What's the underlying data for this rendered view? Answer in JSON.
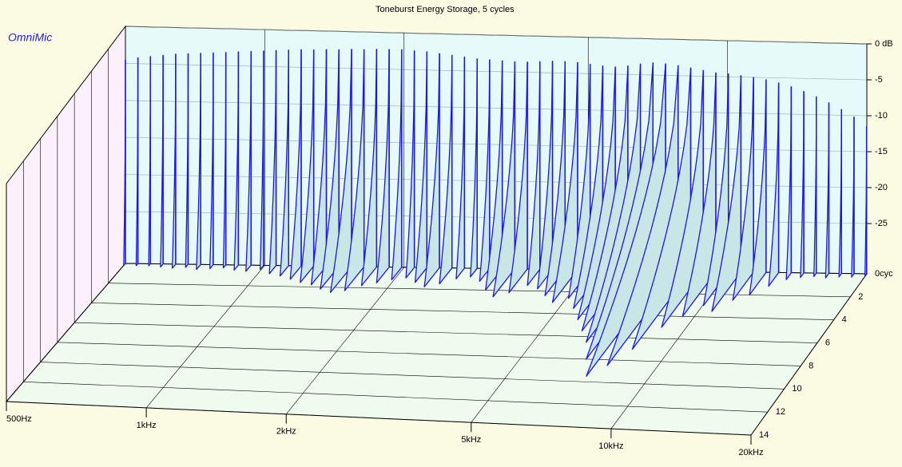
{
  "chart_data": {
    "type": "waterfall",
    "title": "Toneburst Energy Storage, 5 cycles",
    "watermark": "OmniMic",
    "xscale": "log",
    "xlim": [
      500,
      20000
    ],
    "xticks": [
      {
        "value": 500,
        "label": "500Hz"
      },
      {
        "value": 1000,
        "label": "1kHz"
      },
      {
        "value": 2000,
        "label": "2kHz"
      },
      {
        "value": 5000,
        "label": "5kHz"
      },
      {
        "value": 10000,
        "label": "10kHz"
      },
      {
        "value": 20000,
        "label": "20kHz"
      }
    ],
    "ylim": [
      -32,
      0
    ],
    "yticks": [
      {
        "value": 0,
        "label": "0 dB"
      },
      -5,
      -10,
      -15,
      -20,
      -25
    ],
    "zlim": [
      0,
      14
    ],
    "zticks": [
      {
        "value": 0,
        "label": "0cyc"
      },
      2,
      4,
      6,
      8,
      10,
      12,
      14
    ],
    "color": "#1a1ae6",
    "frequencies": [
      500,
      532,
      566,
      603,
      642,
      683,
      727,
      774,
      824,
      877,
      934,
      994,
      1058,
      1126,
      1199,
      1276,
      1359,
      1446,
      1540,
      1639,
      1745,
      1857,
      1977,
      2105,
      2240,
      2385,
      2539,
      2702,
      2877,
      3062,
      3260,
      3470,
      3694,
      3932,
      4186,
      4456,
      4743,
      5049,
      5375,
      5721,
      6090,
      6483,
      6901,
      7347,
      7821,
      8325,
      8862,
      9434,
      10043,
      10691,
      11380,
      12114,
      12896,
      13728,
      14613,
      15556,
      16559,
      17628,
      18765,
      19975
    ],
    "peak_db": [
      -4.5,
      -4.2,
      -4,
      -3.8,
      -3.6,
      -3.5,
      -3.4,
      -3.3,
      -3.2,
      -3.1,
      -3,
      -2.9,
      -2.8,
      -2.7,
      -2.6,
      -2.6,
      -2.5,
      -2.5,
      -2.4,
      -2.4,
      -2.3,
      -2.3,
      -2.3,
      -2.4,
      -2.5,
      -2.7,
      -2.9,
      -3.1,
      -3.3,
      -3.4,
      -3.5,
      -3.6,
      -3.6,
      -3.5,
      -3.4,
      -3.4,
      -3.5,
      -3.7,
      -3.9,
      -4,
      -3.8,
      -3.5,
      -3.3,
      -3.4,
      -3.6,
      -3.9,
      -4.2,
      -4.5,
      -4.6,
      -4.8,
      -5,
      -5.3,
      -5.7,
      -6.2,
      -6.8,
      -7.5,
      -8.3,
      -9.2,
      -10.2,
      -11.5
    ],
    "decay_cycles": [
      0.2,
      0.2,
      0.2,
      0.3,
      0.4,
      0.3,
      0.5,
      0.4,
      0.3,
      0.5,
      0.6,
      0.4,
      0.8,
      1.0,
      1.3,
      1.6,
      1.8,
      2.2,
      2.5,
      2.3,
      1.8,
      1.5,
      1.2,
      1.0,
      1.4,
      1.8,
      1.5,
      1.0,
      0.8,
      1.2,
      2.0,
      2.6,
      2.2,
      1.5,
      1.8,
      2.4,
      3.0,
      2.6,
      3.5,
      4.5,
      5.5,
      6.5,
      8.0,
      9.5,
      8.5,
      7.0,
      5.0,
      4.0,
      3.0,
      3.5,
      2.5,
      2.0,
      1.2,
      0.6,
      0.4,
      0.3,
      0.4,
      0.3,
      0.3,
      0.2
    ]
  }
}
